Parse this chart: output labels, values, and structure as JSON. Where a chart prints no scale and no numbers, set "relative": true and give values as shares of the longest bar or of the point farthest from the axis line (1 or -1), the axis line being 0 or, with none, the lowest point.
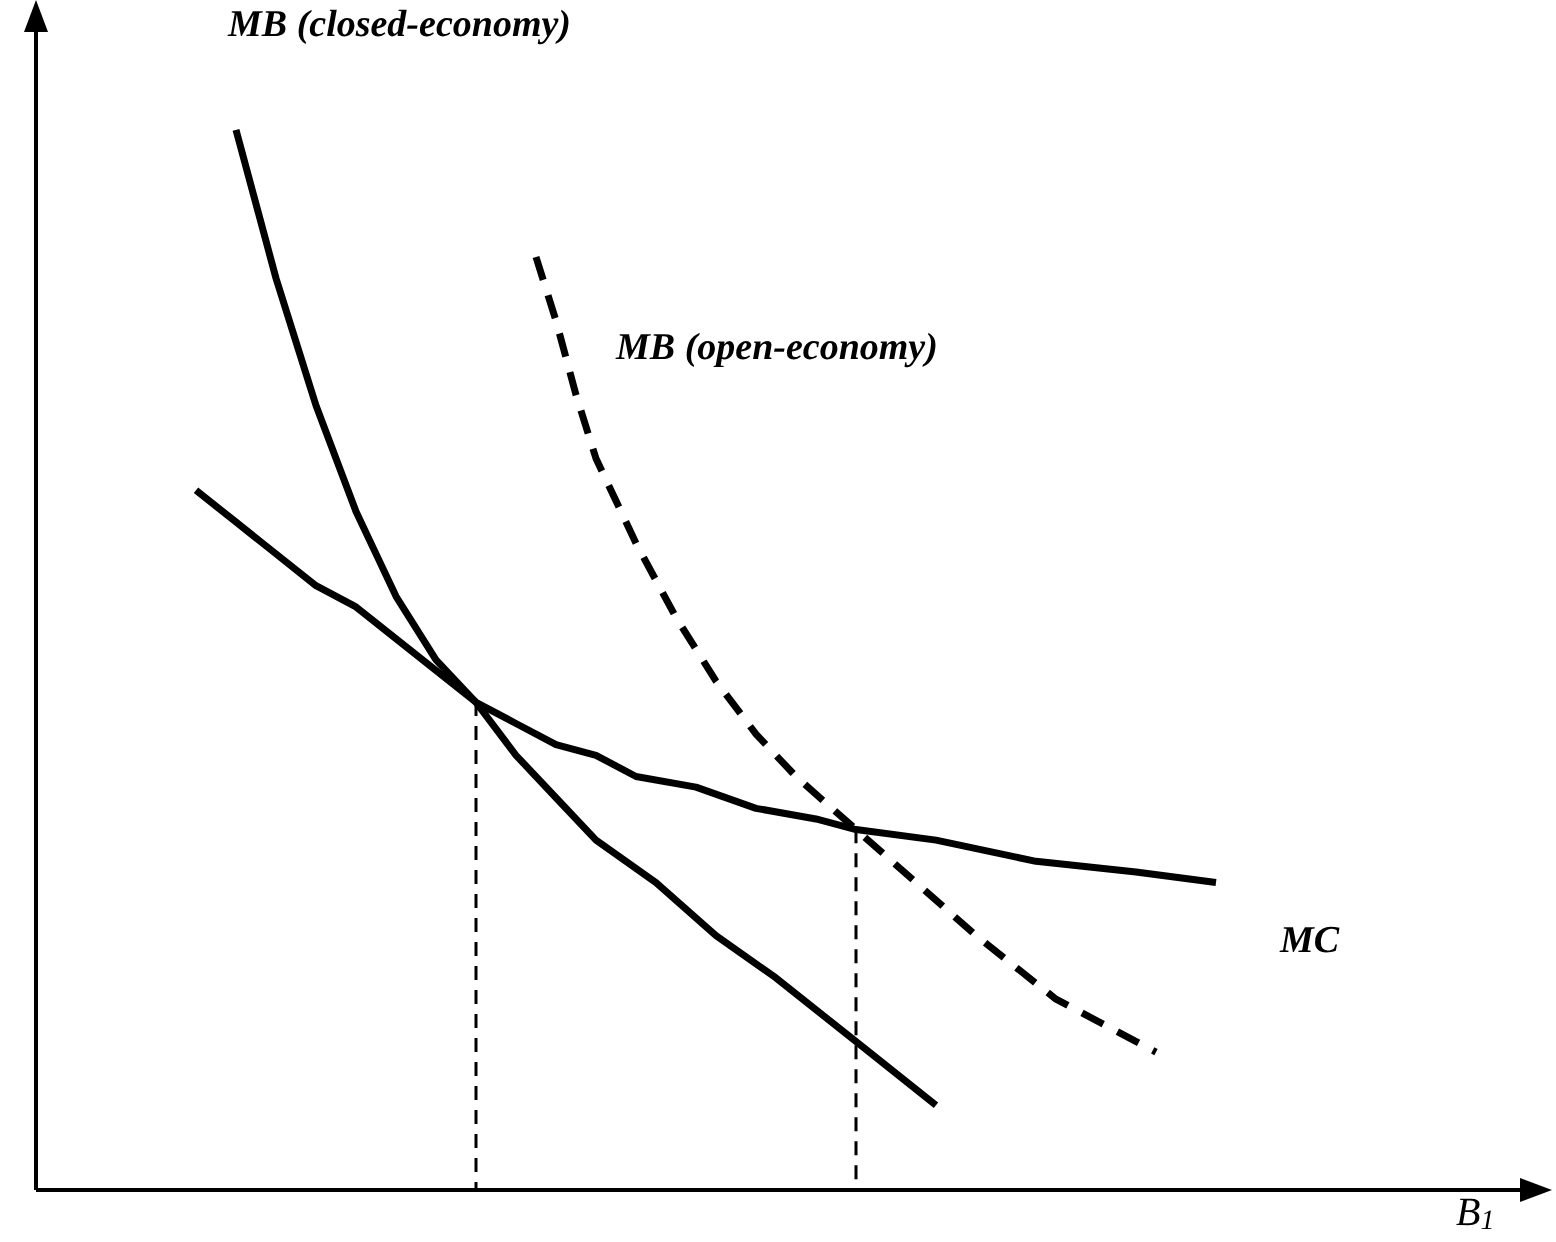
{
  "chart_data": {
    "type": "line",
    "relative": true,
    "xlabel": "B$_{1}$",
    "legend": false,
    "categories": [
      null,
      null,
      null,
      null,
      null,
      null,
      null,
      null,
      null,
      null,
      null,
      null,
      null,
      null,
      null,
      null,
      null,
      null,
      null,
      null,
      null,
      null,
      null,
      null,
      null,
      null,
      null,
      null,
      null,
      null,
      null,
      null,
      null,
      null,
      null,
      null,
      null,
      null,
      null,
      null,
      null,
      null,
      null,
      null,
      null,
      null,
      null,
      null,
      null,
      null,
      null,
      null,
      null,
      null,
      null,
      null,
      null,
      null,
      null,
      null,
      null,
      null,
      null,
      null,
      null,
      null,
      null,
      null,
      null,
      null,
      null,
      null,
      null,
      null,
      null
    ],
    "series": [
      {
        "name": "MB (closed-economy)",
        "color": "#000000",
        "line_style": "solid",
        "values": [
          null,
          null,
          null,
          null,
          null,
          null,
          null,
          null,
          null,
          null,
          1.0,
          0.93,
          0.86,
          0.8,
          0.74,
          0.69,
          0.64,
          0.6,
          0.56,
          null,
          0.5,
          null,
          0.46,
          null,
          0.41,
          null,
          0.37,
          null,
          0.33,
          null,
          null,
          0.29,
          null,
          null,
          0.24,
          null,
          null,
          0.2,
          null,
          null,
          null,
          0.14,
          null,
          null,
          null,
          0.08,
          null,
          null,
          null,
          null,
          null,
          null,
          null,
          null,
          null,
          null,
          null,
          null,
          null,
          null,
          null,
          null,
          null,
          null,
          null,
          null,
          null,
          null,
          null,
          null,
          null,
          null,
          null,
          null,
          null
        ]
      },
      {
        "name": "MB (open-economy)",
        "color": "#000000",
        "line_style": "dashed",
        "values": [
          null,
          null,
          null,
          null,
          null,
          null,
          null,
          null,
          null,
          null,
          null,
          null,
          null,
          null,
          null,
          null,
          null,
          null,
          null,
          null,
          null,
          null,
          null,
          null,
          null,
          0.88,
          0.82,
          0.75,
          0.69,
          null,
          0.61,
          null,
          0.54,
          null,
          0.48,
          null,
          0.43,
          null,
          0.39,
          null,
          null,
          0.34,
          null,
          null,
          0.29,
          null,
          null,
          0.24,
          null,
          null,
          null,
          0.18,
          null,
          null,
          null,
          null,
          0.13,
          null,
          null,
          null,
          null,
          null,
          null,
          null,
          null,
          null,
          null,
          null,
          null,
          null,
          null,
          null,
          null,
          null,
          null
        ]
      },
      {
        "name": "MC",
        "color": "#000000",
        "line_style": "solid",
        "values": [
          null,
          null,
          null,
          null,
          null,
          null,
          null,
          null,
          0.66,
          null,
          0.63,
          null,
          0.6,
          null,
          0.57,
          null,
          0.55,
          null,
          0.52,
          null,
          0.49,
          null,
          0.46,
          null,
          0.44,
          null,
          0.42,
          null,
          0.41,
          null,
          0.39,
          null,
          null,
          0.38,
          null,
          null,
          0.36,
          null,
          null,
          0.35,
          null,
          0.34,
          null,
          null,
          null,
          0.33,
          null,
          null,
          null,
          null,
          0.31,
          null,
          null,
          null,
          null,
          0.3,
          null,
          null,
          null,
          0.29,
          null,
          null,
          null,
          null,
          null,
          null,
          null,
          null,
          null,
          null,
          null,
          null,
          null,
          null,
          null
        ]
      }
    ]
  }
}
